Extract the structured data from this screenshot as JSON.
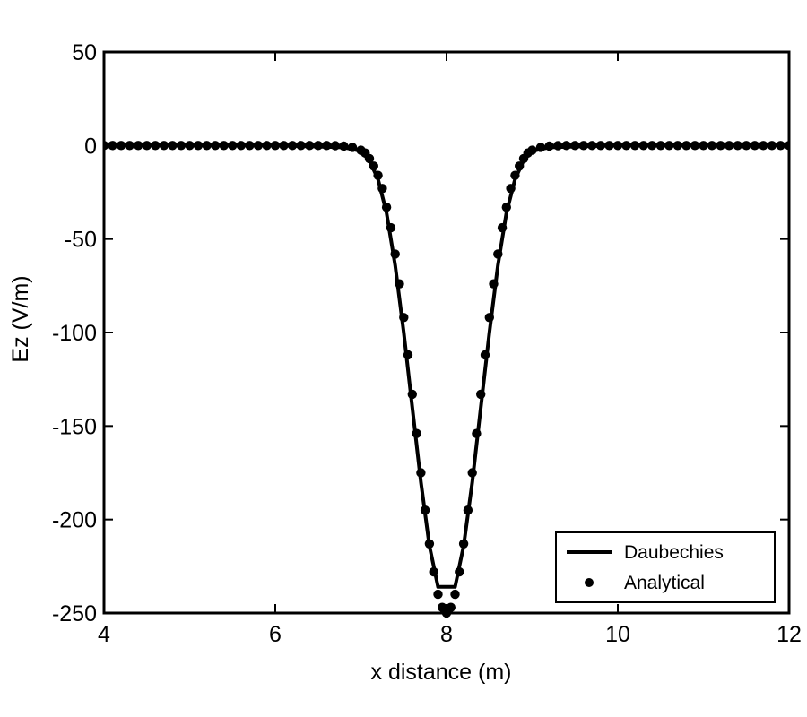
{
  "chart_data": {
    "type": "line",
    "title": "",
    "xlabel": "x distance  (m)",
    "ylabel": "Ez (V/m)",
    "xlim": [
      4,
      12
    ],
    "ylim": [
      -250,
      50
    ],
    "xticks": [
      4,
      6,
      8,
      10,
      12
    ],
    "xtick_labels": [
      "4",
      "6",
      "8",
      "10",
      "12"
    ],
    "yticks": [
      50,
      0,
      -50,
      -100,
      -150,
      -200,
      -250
    ],
    "ytick_labels": [
      "50",
      "0",
      "-50",
      "-100",
      "-150",
      "-200",
      "-250"
    ],
    "grid": false,
    "legend": {
      "placement": "bottom-right",
      "entries": [
        "Daubechies",
        "Analytical"
      ]
    },
    "series": [
      {
        "name": "Daubechies",
        "style": "line",
        "color": "#000000",
        "x": [
          4.0,
          5.0,
          6.0,
          6.8,
          7.0,
          7.1,
          7.2,
          7.3,
          7.4,
          7.5,
          7.6,
          7.7,
          7.8,
          7.9,
          7.95,
          8.0,
          8.05,
          8.1,
          8.2,
          8.3,
          8.4,
          8.5,
          8.6,
          8.7,
          8.8,
          8.9,
          9.0,
          9.2,
          10.0,
          11.0,
          12.0
        ],
        "y": [
          0,
          0,
          0,
          -1,
          -3,
          -8,
          -18,
          -36,
          -64,
          -100,
          -140,
          -180,
          -214,
          -236,
          -236,
          -236,
          -236,
          -236,
          -214,
          -180,
          -140,
          -100,
          -64,
          -36,
          -18,
          -8,
          -3,
          -1,
          0,
          0,
          0
        ]
      },
      {
        "name": "Analytical",
        "style": "markers",
        "color": "#000000",
        "x": [
          4.0,
          4.1,
          4.2,
          4.3,
          4.4,
          4.5,
          4.6,
          4.7,
          4.8,
          4.9,
          5.0,
          5.1,
          5.2,
          5.3,
          5.4,
          5.5,
          5.6,
          5.7,
          5.8,
          5.9,
          6.0,
          6.1,
          6.2,
          6.3,
          6.4,
          6.5,
          6.6,
          6.7,
          6.8,
          6.9,
          7.0,
          7.05,
          7.1,
          7.15,
          7.2,
          7.25,
          7.3,
          7.35,
          7.4,
          7.45,
          7.5,
          7.55,
          7.6,
          7.65,
          7.7,
          7.75,
          7.8,
          7.85,
          7.9,
          7.95,
          8.0,
          8.05,
          8.1,
          8.15,
          8.2,
          8.25,
          8.3,
          8.35,
          8.4,
          8.45,
          8.5,
          8.55,
          8.6,
          8.65,
          8.7,
          8.75,
          8.8,
          8.85,
          8.9,
          8.95,
          9.0,
          9.1,
          9.2,
          9.3,
          9.4,
          9.5,
          9.6,
          9.7,
          9.8,
          9.9,
          10.0,
          10.1,
          10.2,
          10.3,
          10.4,
          10.5,
          10.6,
          10.7,
          10.8,
          10.9,
          11.0,
          11.1,
          11.2,
          11.3,
          11.4,
          11.5,
          11.6,
          11.7,
          11.8,
          11.9,
          12.0
        ],
        "y": [
          0,
          0,
          0,
          0,
          0,
          0,
          0,
          0,
          0,
          0,
          0,
          0,
          0,
          0,
          0,
          0,
          0,
          0,
          0,
          0,
          0,
          0,
          0,
          0,
          0,
          0,
          0,
          -0.1,
          -0.3,
          -1,
          -2.5,
          -4,
          -7,
          -11,
          -16,
          -23,
          -33,
          -44,
          -58,
          -74,
          -92,
          -112,
          -133,
          -154,
          -175,
          -195,
          -213,
          -228,
          -240,
          -247,
          -250,
          -247,
          -240,
          -228,
          -213,
          -195,
          -175,
          -154,
          -133,
          -112,
          -92,
          -74,
          -58,
          -44,
          -33,
          -23,
          -16,
          -11,
          -7,
          -4,
          -2.5,
          -1,
          -0.3,
          -0.1,
          0,
          0,
          0,
          0,
          0,
          0,
          0,
          0,
          0,
          0,
          0,
          0,
          0,
          0,
          0,
          0,
          0,
          0,
          0,
          0,
          0,
          0,
          0,
          0,
          0,
          0,
          0
        ]
      }
    ]
  }
}
